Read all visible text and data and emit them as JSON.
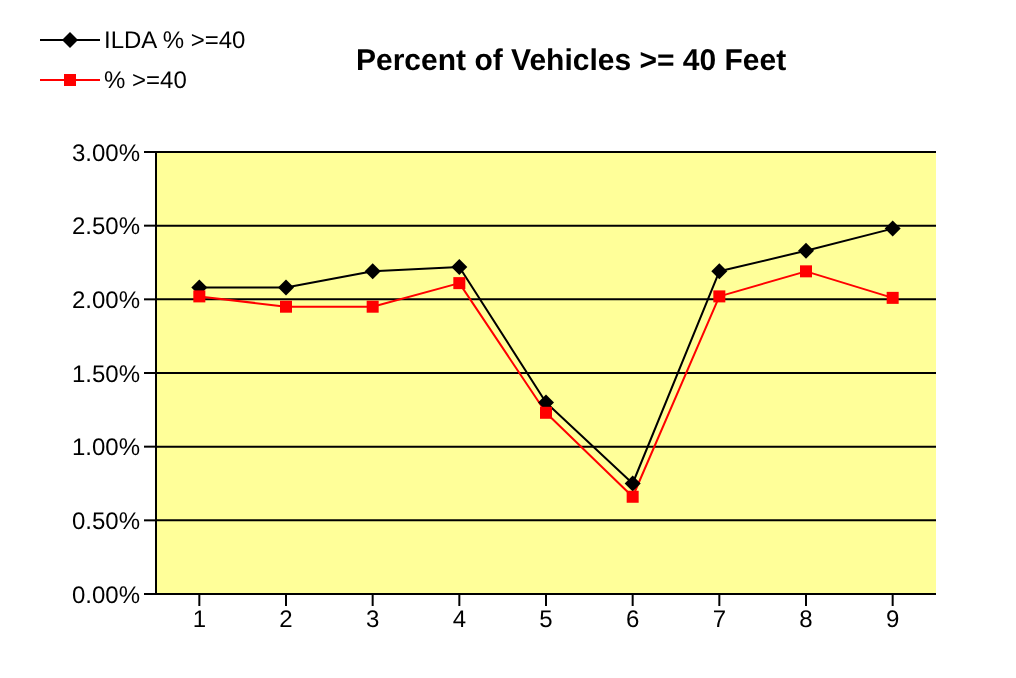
{
  "chart_data": {
    "type": "line",
    "title": "Percent of Vehicles >= 40 Feet",
    "categories": [
      "1",
      "2",
      "3",
      "4",
      "5",
      "6",
      "7",
      "8",
      "9"
    ],
    "series": [
      {
        "name": "ILDA % >=40",
        "color": "#000000",
        "marker": "diamond",
        "values": [
          2.08,
          2.08,
          2.19,
          2.22,
          1.3,
          0.75,
          2.19,
          2.33,
          2.48
        ]
      },
      {
        "name": "% >=40",
        "color": "#ff0000",
        "marker": "square",
        "values": [
          2.02,
          1.95,
          1.95,
          2.11,
          1.23,
          0.66,
          2.02,
          2.19,
          2.01
        ]
      }
    ],
    "ylim": [
      0,
      3
    ],
    "yticks": [
      {
        "value": 0,
        "label": "0.00%"
      },
      {
        "value": 0.5,
        "label": "0.50%"
      },
      {
        "value": 1,
        "label": "1.00%"
      },
      {
        "value": 1.5,
        "label": "1.50%"
      },
      {
        "value": 2,
        "label": "2.00%"
      },
      {
        "value": 2.5,
        "label": "2.50%"
      },
      {
        "value": 3,
        "label": "3.00%"
      }
    ],
    "grid": "y",
    "legend": "top left"
  }
}
